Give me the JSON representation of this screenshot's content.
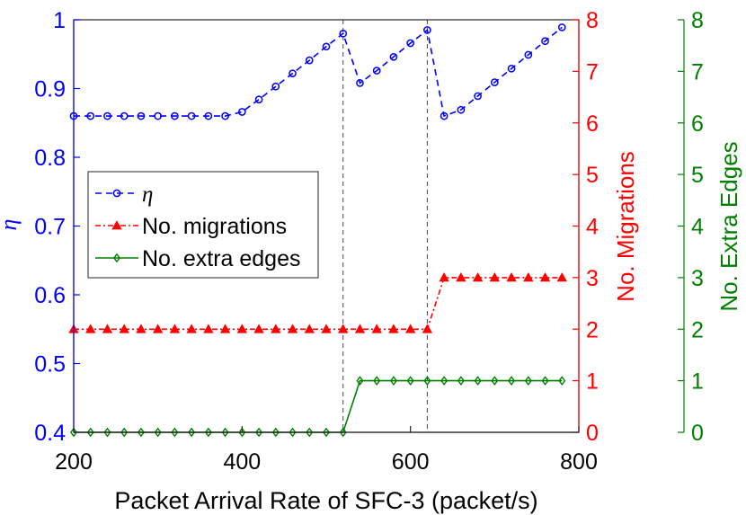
{
  "chart_data": {
    "type": "line",
    "xlabel": "Packet Arrival Rate of SFC-3 (packet/s)",
    "x_ticks": [
      200,
      400,
      600,
      800
    ],
    "xlim": [
      200,
      800
    ],
    "left_axis": {
      "label": "η",
      "color": "#0000ff",
      "ylim": [
        0.4,
        1.0
      ],
      "ticks": [
        "0.4",
        "0.5",
        "0.6",
        "0.7",
        "0.8",
        "0.9",
        "1"
      ]
    },
    "right_axis_1": {
      "label": "No. Migrations",
      "color": "#ff0000",
      "ylim": [
        0,
        8
      ],
      "ticks": [
        "0",
        "1",
        "2",
        "3",
        "4",
        "5",
        "6",
        "7",
        "8"
      ]
    },
    "right_axis_2": {
      "label": "No. Extra Edges",
      "color": "#008000",
      "ylim": [
        0,
        8
      ],
      "ticks": [
        "0",
        "1",
        "2",
        "3",
        "4",
        "5",
        "6",
        "7",
        "8"
      ]
    },
    "x": [
      200,
      220,
      240,
      260,
      280,
      300,
      320,
      340,
      360,
      380,
      400,
      420,
      440,
      460,
      480,
      500,
      520,
      540,
      560,
      580,
      600,
      620,
      640,
      660,
      680,
      700,
      720,
      740,
      760,
      780
    ],
    "series": [
      {
        "name": "η",
        "axis": "left",
        "color": "#0000ff",
        "marker": "circle",
        "values": [
          0.86,
          0.86,
          0.86,
          0.86,
          0.86,
          0.86,
          0.86,
          0.86,
          0.86,
          0.86,
          0.866,
          0.884,
          0.903,
          0.922,
          0.941,
          0.961,
          0.98,
          0.908,
          0.926,
          0.946,
          0.966,
          0.985,
          0.86,
          0.869,
          0.889,
          0.909,
          0.929,
          0.949,
          0.969,
          0.989
        ]
      },
      {
        "name": "No. migrations",
        "axis": "right_1",
        "color": "#ff0000",
        "marker": "triangle",
        "values": [
          2,
          2,
          2,
          2,
          2,
          2,
          2,
          2,
          2,
          2,
          2,
          2,
          2,
          2,
          2,
          2,
          2,
          2,
          2,
          2,
          2,
          2,
          3,
          3,
          3,
          3,
          3,
          3,
          3,
          3
        ]
      },
      {
        "name": "No. extra edges",
        "axis": "right_2",
        "color": "#008000",
        "marker": "diamond",
        "values": [
          0,
          0,
          0,
          0,
          0,
          0,
          0,
          0,
          0,
          0,
          0,
          0,
          0,
          0,
          0,
          0,
          0,
          1,
          1,
          1,
          1,
          1,
          1,
          1,
          1,
          1,
          1,
          1,
          1,
          1
        ]
      }
    ],
    "vlines": [
      520,
      620
    ],
    "legend": {
      "placement": "left",
      "entries": [
        "η",
        "No. migrations",
        "No. extra edges"
      ]
    }
  }
}
